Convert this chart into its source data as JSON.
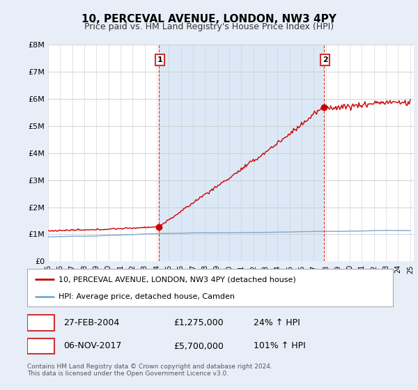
{
  "title": "10, PERCEVAL AVENUE, LONDON, NW3 4PY",
  "subtitle": "Price paid vs. HM Land Registry's House Price Index (HPI)",
  "title_fontsize": 11,
  "subtitle_fontsize": 9,
  "bg_color": "#e8eef8",
  "plot_bg_color": "#ffffff",
  "shade_color": "#dce8f5",
  "grid_color": "#cccccc",
  "red_color": "#cc0000",
  "blue_color": "#7aaad0",
  "dashed_color": "#cc0000",
  "ylim": [
    0,
    8000000
  ],
  "yticks": [
    0,
    1000000,
    2000000,
    3000000,
    4000000,
    5000000,
    6000000,
    7000000,
    8000000
  ],
  "ytick_labels": [
    "£0",
    "£1M",
    "£2M",
    "£3M",
    "£4M",
    "£5M",
    "£6M",
    "£7M",
    "£8M"
  ],
  "x_start_year": 1995,
  "x_end_year": 2025,
  "xticks": [
    1995,
    1996,
    1997,
    1998,
    1999,
    2000,
    2001,
    2002,
    2003,
    2004,
    2005,
    2006,
    2007,
    2008,
    2009,
    2010,
    2011,
    2012,
    2013,
    2014,
    2015,
    2016,
    2017,
    2018,
    2019,
    2020,
    2021,
    2022,
    2023,
    2024,
    2025
  ],
  "sale1_x": 2004.15,
  "sale1_y": 1275000,
  "sale1_label": "1",
  "sale2_x": 2017.85,
  "sale2_y": 5700000,
  "sale2_label": "2",
  "legend_line1": "10, PERCEVAL AVENUE, LONDON, NW3 4PY (detached house)",
  "legend_line2": "HPI: Average price, detached house, Camden",
  "table_row1": [
    "1",
    "27-FEB-2004",
    "£1,275,000",
    "24% ↑ HPI"
  ],
  "table_row2": [
    "2",
    "06-NOV-2017",
    "£5,700,000",
    "101% ↑ HPI"
  ],
  "footnote": "Contains HM Land Registry data © Crown copyright and database right 2024.\nThis data is licensed under the Open Government Licence v3.0."
}
